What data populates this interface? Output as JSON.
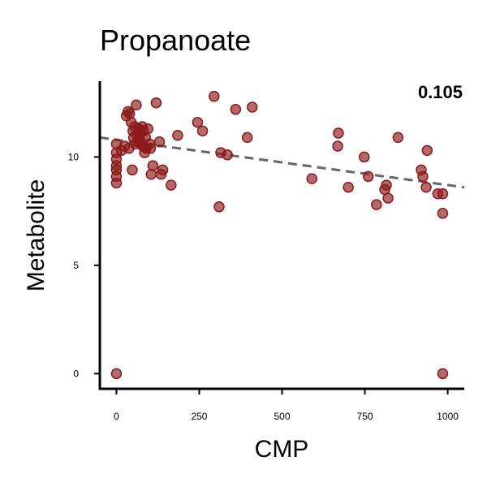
{
  "chart_data": {
    "type": "scatter",
    "title": "Propanoate",
    "xlabel": "CMP",
    "ylabel": "Metabolite",
    "annotation": "0.105",
    "xlim": [
      -50,
      1050
    ],
    "ylim": [
      -0.7,
      13.5
    ],
    "xticks": [
      0,
      250,
      500,
      750,
      1000
    ],
    "yticks": [
      0,
      5,
      10
    ],
    "grid": false,
    "point_color": "#8b1a1a",
    "trend_color": "#666666",
    "trend_line": {
      "x": [
        -50,
        1050
      ],
      "y": [
        10.9,
        8.6
      ]
    },
    "points": [
      {
        "x": 0,
        "y": 0.0
      },
      {
        "x": 985,
        "y": 0.0
      },
      {
        "x": 0,
        "y": 8.8
      },
      {
        "x": 0,
        "y": 9.1
      },
      {
        "x": 0,
        "y": 9.4
      },
      {
        "x": 0,
        "y": 9.6
      },
      {
        "x": 0,
        "y": 9.9
      },
      {
        "x": 0,
        "y": 10.2
      },
      {
        "x": 0,
        "y": 10.6
      },
      {
        "x": 15,
        "y": 10.3
      },
      {
        "x": 25,
        "y": 10.5
      },
      {
        "x": 30,
        "y": 11.9
      },
      {
        "x": 35,
        "y": 12.1
      },
      {
        "x": 38,
        "y": 10.4
      },
      {
        "x": 40,
        "y": 12.0
      },
      {
        "x": 45,
        "y": 11.6
      },
      {
        "x": 48,
        "y": 9.4
      },
      {
        "x": 50,
        "y": 11.2
      },
      {
        "x": 52,
        "y": 10.9
      },
      {
        "x": 55,
        "y": 11.4
      },
      {
        "x": 58,
        "y": 10.6
      },
      {
        "x": 60,
        "y": 12.4
      },
      {
        "x": 62,
        "y": 11.0
      },
      {
        "x": 65,
        "y": 10.7
      },
      {
        "x": 68,
        "y": 11.3
      },
      {
        "x": 70,
        "y": 10.8
      },
      {
        "x": 72,
        "y": 11.1
      },
      {
        "x": 75,
        "y": 10.6
      },
      {
        "x": 78,
        "y": 11.4
      },
      {
        "x": 80,
        "y": 10.5
      },
      {
        "x": 82,
        "y": 11.2
      },
      {
        "x": 85,
        "y": 10.2
      },
      {
        "x": 88,
        "y": 10.9
      },
      {
        "x": 90,
        "y": 10.4
      },
      {
        "x": 95,
        "y": 11.3
      },
      {
        "x": 100,
        "y": 10.6
      },
      {
        "x": 103,
        "y": 10.4
      },
      {
        "x": 105,
        "y": 9.2
      },
      {
        "x": 110,
        "y": 9.6
      },
      {
        "x": 120,
        "y": 12.5
      },
      {
        "x": 130,
        "y": 10.7
      },
      {
        "x": 135,
        "y": 9.2
      },
      {
        "x": 140,
        "y": 9.4
      },
      {
        "x": 165,
        "y": 8.7
      },
      {
        "x": 185,
        "y": 11.0
      },
      {
        "x": 245,
        "y": 11.6
      },
      {
        "x": 260,
        "y": 11.2
      },
      {
        "x": 295,
        "y": 12.8
      },
      {
        "x": 310,
        "y": 7.7
      },
      {
        "x": 315,
        "y": 10.2
      },
      {
        "x": 335,
        "y": 10.1
      },
      {
        "x": 360,
        "y": 12.2
      },
      {
        "x": 395,
        "y": 10.9
      },
      {
        "x": 410,
        "y": 12.3
      },
      {
        "x": 590,
        "y": 9.0
      },
      {
        "x": 670,
        "y": 11.1
      },
      {
        "x": 668,
        "y": 10.5
      },
      {
        "x": 700,
        "y": 8.6
      },
      {
        "x": 748,
        "y": 10.0
      },
      {
        "x": 760,
        "y": 9.1
      },
      {
        "x": 785,
        "y": 7.8
      },
      {
        "x": 810,
        "y": 8.5
      },
      {
        "x": 815,
        "y": 8.7
      },
      {
        "x": 820,
        "y": 8.1
      },
      {
        "x": 850,
        "y": 10.9
      },
      {
        "x": 920,
        "y": 9.4
      },
      {
        "x": 925,
        "y": 9.1
      },
      {
        "x": 935,
        "y": 8.6
      },
      {
        "x": 938,
        "y": 10.3
      },
      {
        "x": 970,
        "y": 8.3
      },
      {
        "x": 985,
        "y": 8.3
      },
      {
        "x": 985,
        "y": 7.4
      }
    ]
  }
}
